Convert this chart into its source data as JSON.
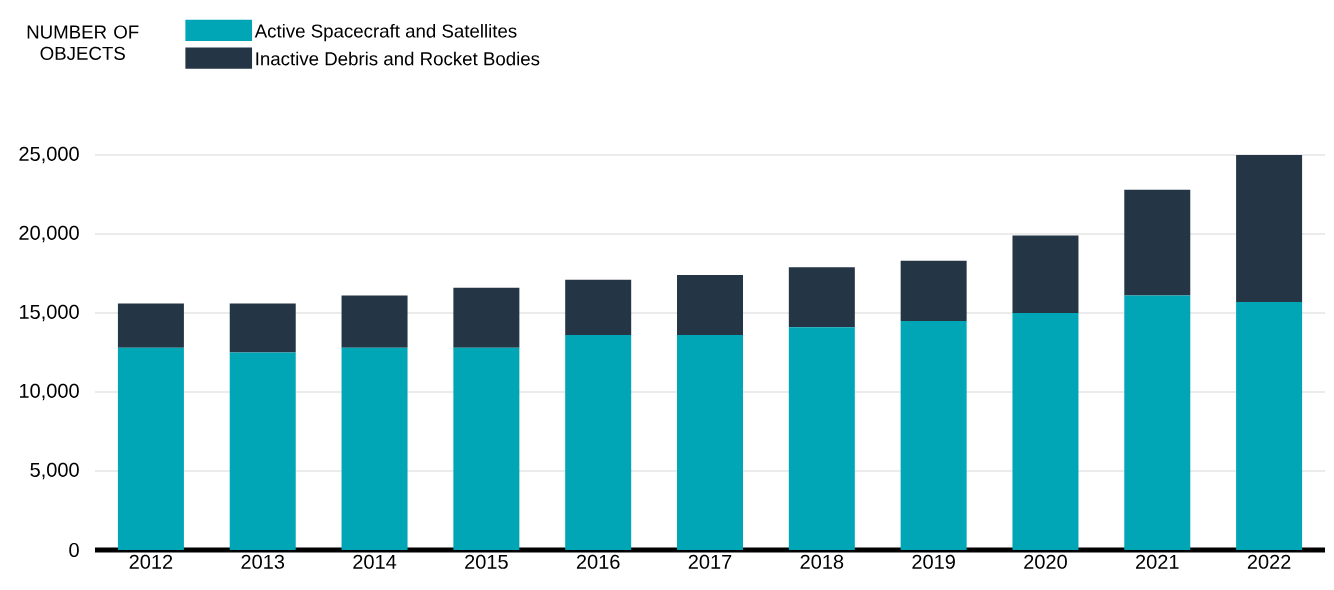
{
  "chart_data": {
    "type": "bar",
    "stacked": true,
    "ylabel": "NUMBER OF OBJECTS",
    "categories": [
      "2012",
      "2013",
      "2014",
      "2015",
      "2016",
      "2017",
      "2018",
      "2019",
      "2020",
      "2021",
      "2022"
    ],
    "series": [
      {
        "name": "Active Spacecraft and Satellites",
        "color": "#00a6b6",
        "values": [
          12800,
          12500,
          12800,
          12800,
          13600,
          13600,
          14100,
          14500,
          15000,
          16100,
          15700
        ]
      },
      {
        "name": "Inactive Debris and Rocket Bodies",
        "color": "#243646",
        "values": [
          2800,
          3100,
          3300,
          3800,
          3500,
          3800,
          3800,
          3800,
          4900,
          6700,
          9300
        ]
      }
    ],
    "ylim": [
      0,
      25000
    ],
    "yticks": [
      0,
      {
        "value": 5000,
        "label": "5,000"
      },
      {
        "value": 10000,
        "label": "10,000"
      },
      {
        "value": 15000,
        "label": "15,000"
      },
      {
        "value": 20000,
        "label": "20,000"
      },
      {
        "value": 25000,
        "label": "25,000"
      }
    ],
    "grid": "y",
    "legend": "top left"
  }
}
